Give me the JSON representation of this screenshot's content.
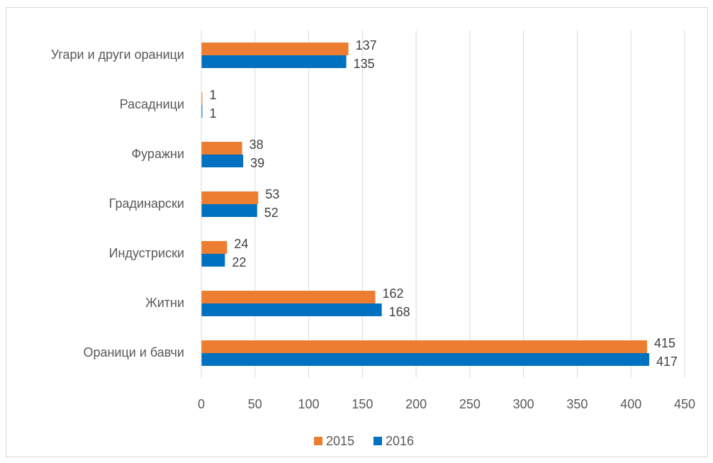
{
  "chart_data": {
    "type": "hbar",
    "categories": [
      "Угари и други ораници",
      "Расадници",
      "Фуражни",
      "Градинарски",
      "Индустриски",
      "Житни",
      "Ораници и бавчи"
    ],
    "series": [
      {
        "name": "2015",
        "color": "#ed7d31",
        "values": [
          137,
          1,
          38,
          53,
          24,
          162,
          415
        ]
      },
      {
        "name": "2016",
        "color": "#0070c0",
        "values": [
          135,
          1,
          39,
          52,
          22,
          168,
          417
        ]
      }
    ],
    "xlim": [
      0,
      450
    ],
    "xticks": [
      0,
      50,
      100,
      150,
      200,
      250,
      300,
      350,
      400,
      450
    ],
    "grid": true,
    "legend": "bottom"
  }
}
